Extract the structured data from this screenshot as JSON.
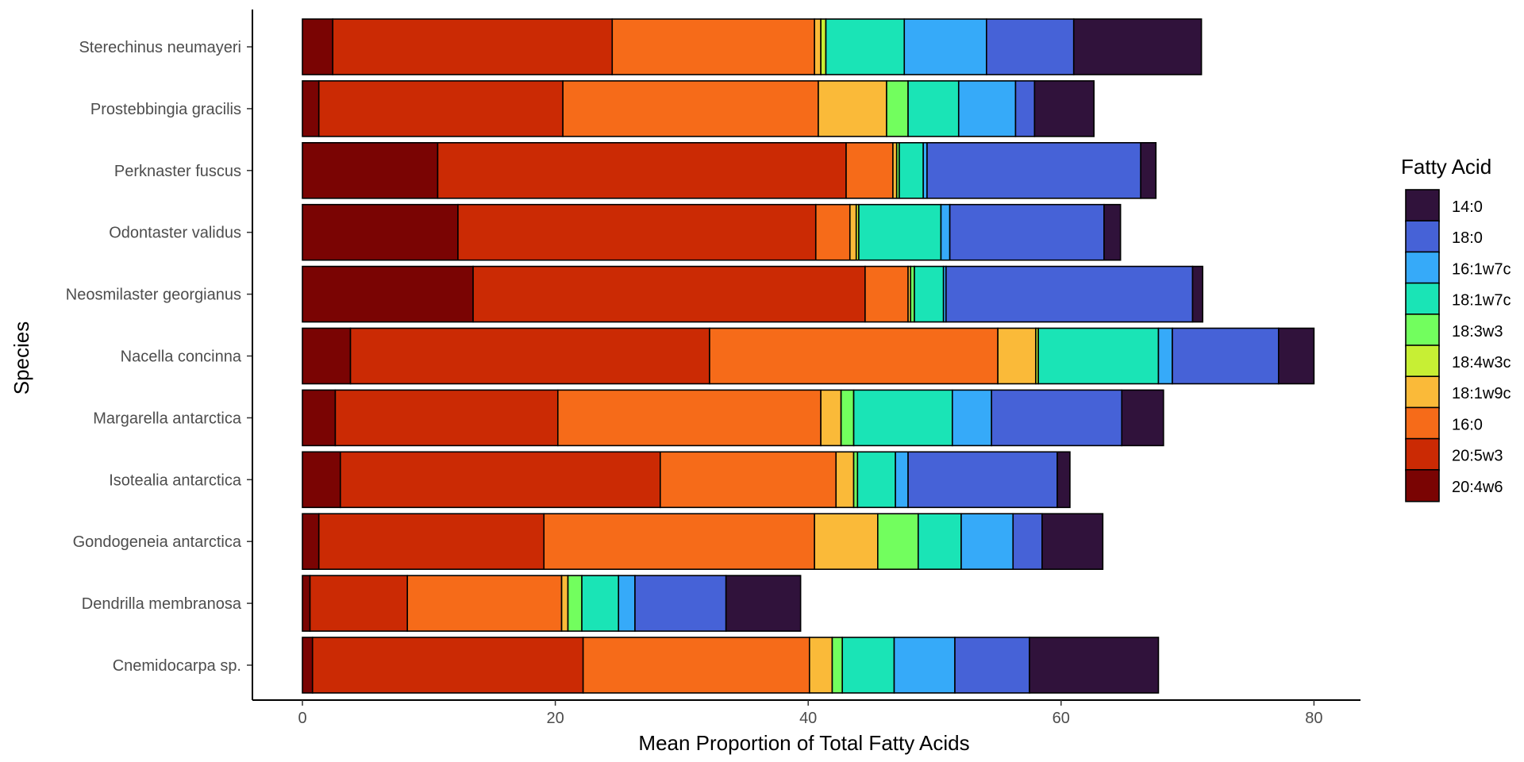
{
  "chart_data": {
    "type": "bar",
    "orientation": "horizontal",
    "stacked": true,
    "xlabel": "Mean Proportion of Total Fatty Acids",
    "ylabel": "Species",
    "xlim": [
      -4,
      84
    ],
    "x_ticks": [
      0,
      20,
      40,
      60,
      80
    ],
    "x_tick_labels": [
      "0",
      "20",
      "40",
      "60",
      "80"
    ],
    "grid": false,
    "legend": {
      "title": "Fatty Acid",
      "placement": "right",
      "entries": [
        "14:0",
        "18:0",
        "16:1w7c",
        "18:1w7c",
        "18:3w3",
        "18:4w3c",
        "18:1w9c",
        "16:0",
        "20:5w3",
        "20:4w6"
      ]
    },
    "categories": [
      "Sterechinus neumayeri",
      "Prostebbingia gracilis",
      "Perknaster fuscus",
      "Odontaster validus",
      "Neosmilaster georgianus",
      "Nacella concinna",
      "Margarella antarctica",
      "Isotealia antarctica",
      "Gondogeneia antarctica",
      "Dendrilla membranosa",
      "Cnemidocarpa sp."
    ],
    "stack_order": [
      "20:4w6",
      "20:5w3",
      "16:0",
      "18:1w9c",
      "18:4w3c",
      "18:3w3",
      "18:1w7c",
      "16:1w7c",
      "18:0",
      "14:0"
    ],
    "series": [
      {
        "name": "20:4w6",
        "color": "#7A0403",
        "values": [
          2.4,
          1.3,
          10.7,
          12.3,
          13.5,
          3.8,
          2.6,
          3.0,
          1.3,
          0.6,
          0.8
        ]
      },
      {
        "name": "20:5w3",
        "color": "#CB2A04",
        "values": [
          22.1,
          19.3,
          32.3,
          28.3,
          31.0,
          28.4,
          17.6,
          25.3,
          17.8,
          7.7,
          21.4
        ]
      },
      {
        "name": "16:0",
        "color": "#F66B19",
        "values": [
          16.0,
          20.2,
          3.7,
          2.7,
          3.4,
          22.8,
          20.8,
          13.9,
          21.4,
          12.2,
          17.9
        ]
      },
      {
        "name": "18:1w9c",
        "color": "#FABA39",
        "values": [
          0.5,
          5.4,
          0.3,
          0.5,
          0.2,
          3.0,
          1.6,
          1.4,
          5.0,
          0.5,
          1.8
        ]
      },
      {
        "name": "18:4w3c",
        "color": "#C7EF34",
        "values": [
          0.4,
          0.0,
          0.0,
          0.2,
          0.0,
          0.2,
          0.0,
          0.0,
          0.0,
          0.0,
          0.0
        ]
      },
      {
        "name": "18:3w3",
        "color": "#72FE5E",
        "values": [
          0.0,
          1.7,
          0.2,
          0.0,
          0.3,
          0.0,
          1.0,
          0.3,
          3.2,
          1.1,
          0.8
        ]
      },
      {
        "name": "18:1w7c",
        "color": "#1AE4B6",
        "values": [
          6.2,
          4.0,
          1.9,
          6.5,
          2.3,
          9.5,
          7.8,
          3.0,
          3.4,
          2.9,
          4.1
        ]
      },
      {
        "name": "16:1w7c",
        "color": "#36AAF9",
        "values": [
          6.5,
          4.5,
          0.3,
          0.7,
          0.2,
          1.1,
          3.1,
          1.0,
          4.1,
          1.3,
          4.8
        ]
      },
      {
        "name": "18:0",
        "color": "#4662D7",
        "values": [
          6.9,
          1.5,
          16.9,
          12.2,
          19.5,
          8.4,
          10.3,
          11.8,
          2.3,
          7.2,
          5.9
        ]
      },
      {
        "name": "14:0",
        "color": "#30123B",
        "values": [
          10.1,
          4.7,
          1.2,
          1.3,
          0.8,
          2.8,
          3.3,
          1.0,
          4.8,
          5.9,
          10.2
        ]
      }
    ]
  }
}
